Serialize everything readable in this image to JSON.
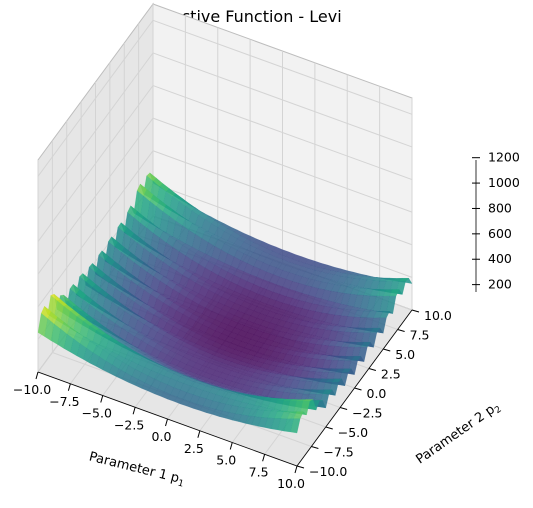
{
  "chart_data": {
    "type": "surface",
    "title": "Objective Function - Levi",
    "xlabel": "Parameter 1 p",
    "xlabel_sub": "1",
    "ylabel": "Parameter 2 p",
    "ylabel_sub": "2",
    "x_ticks": [
      "−10.0",
      "−7.5",
      "−5.0",
      "−2.5",
      "0.0",
      "2.5",
      "5.0",
      "7.5",
      "10.0"
    ],
    "x_tick_values": [
      -10,
      -7.5,
      -5,
      -2.5,
      0,
      2.5,
      5,
      7.5,
      10
    ],
    "y_ticks": [
      "−10.0",
      "−7.5",
      "−5.0",
      "−2.5",
      "0.0",
      "2.5",
      "5.0",
      "7.5",
      "10.0"
    ],
    "y_tick_values": [
      -10,
      -7.5,
      -5,
      -2.5,
      0,
      2.5,
      5,
      7.5,
      10
    ],
    "z_ticks": [
      "200",
      "400",
      "600",
      "800",
      "1000",
      "1200"
    ],
    "z_tick_values": [
      200,
      400,
      600,
      800,
      1000,
      1200
    ],
    "xlim": [
      -10,
      10
    ],
    "ylim": [
      -10,
      10
    ],
    "zlim": [
      0,
      1300
    ],
    "colormap": "viridis",
    "surface_alpha": 0.8,
    "grid": true
  },
  "colors": {
    "colormap_stops": [
      "#440154",
      "#482475",
      "#414487",
      "#355f8d",
      "#2a788e",
      "#21918c",
      "#22a884",
      "#44bf70",
      "#7ad151",
      "#bddf26",
      "#fde725"
    ],
    "pane_face": "#f2f2f2",
    "pane_face_dark": "#e6e6e6"
  }
}
